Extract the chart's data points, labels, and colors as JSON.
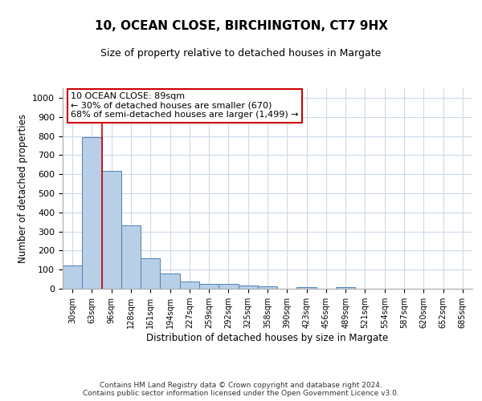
{
  "title": "10, OCEAN CLOSE, BIRCHINGTON, CT7 9HX",
  "subtitle": "Size of property relative to detached houses in Margate",
  "xlabel": "Distribution of detached houses by size in Margate",
  "ylabel": "Number of detached properties",
  "bar_labels": [
    "30sqm",
    "63sqm",
    "96sqm",
    "128sqm",
    "161sqm",
    "194sqm",
    "227sqm",
    "259sqm",
    "292sqm",
    "325sqm",
    "358sqm",
    "390sqm",
    "423sqm",
    "456sqm",
    "489sqm",
    "521sqm",
    "554sqm",
    "587sqm",
    "620sqm",
    "652sqm",
    "685sqm"
  ],
  "bar_values": [
    122,
    793,
    619,
    330,
    158,
    80,
    37,
    27,
    25,
    18,
    14,
    0,
    9,
    0,
    7,
    0,
    0,
    0,
    0,
    0,
    0
  ],
  "bar_color": "#b8cfe8",
  "bar_edge_color": "#5080b0",
  "annotation_text": "10 OCEAN CLOSE: 89sqm\n← 30% of detached houses are smaller (670)\n68% of semi-detached houses are larger (1,499) →",
  "annotation_box_color": "#ffffff",
  "annotation_box_edge_color": "#cc0000",
  "property_line_color": "#cc0000",
  "grid_color": "#ccdaeb",
  "background_color": "#ffffff",
  "footer_line1": "Contains HM Land Registry data © Crown copyright and database right 2024.",
  "footer_line2": "Contains public sector information licensed under the Open Government Licence v3.0.",
  "ylim": [
    0,
    1050
  ],
  "yticks": [
    0,
    100,
    200,
    300,
    400,
    500,
    600,
    700,
    800,
    900,
    1000
  ]
}
